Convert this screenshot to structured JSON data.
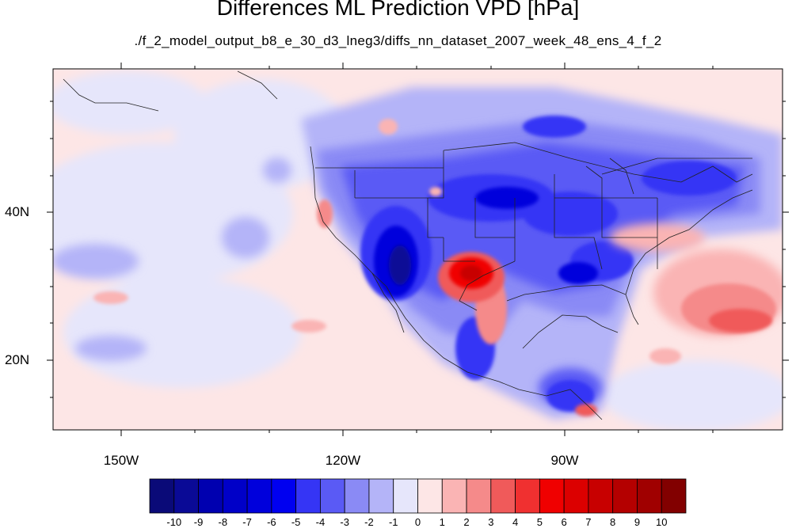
{
  "title": "Differences ML Prediction VPD [hPa]",
  "subtitle": "./f_2_model_output_b8_e_30_d3_lneg3/diffs_nn_dataset_2007_week_48_ens_4_f_2",
  "map": {
    "lon_labels": [
      "150W",
      "120W",
      "90W"
    ],
    "lat_labels": [
      "40N",
      "20N"
    ]
  },
  "colorbar": {
    "labels": [
      "-10",
      "-9",
      "-8",
      "-7",
      "-6",
      "-5",
      "-4",
      "-3",
      "-2",
      "-1",
      "0",
      "1",
      "2",
      "3",
      "4",
      "5",
      "6",
      "7",
      "8",
      "9",
      "10"
    ],
    "colors": [
      "#0a0a78",
      "#0a0a96",
      "#0000b0",
      "#0000c8",
      "#0000dc",
      "#0000f0",
      "#3535f5",
      "#5a5af5",
      "#8a8af5",
      "#b4b4f8",
      "#e6e6fb",
      "#fde6e6",
      "#fab4b4",
      "#f58a8a",
      "#f05a5a",
      "#f03030",
      "#f00000",
      "#dc0000",
      "#c80000",
      "#b40000",
      "#a00000",
      "#820000"
    ]
  }
}
